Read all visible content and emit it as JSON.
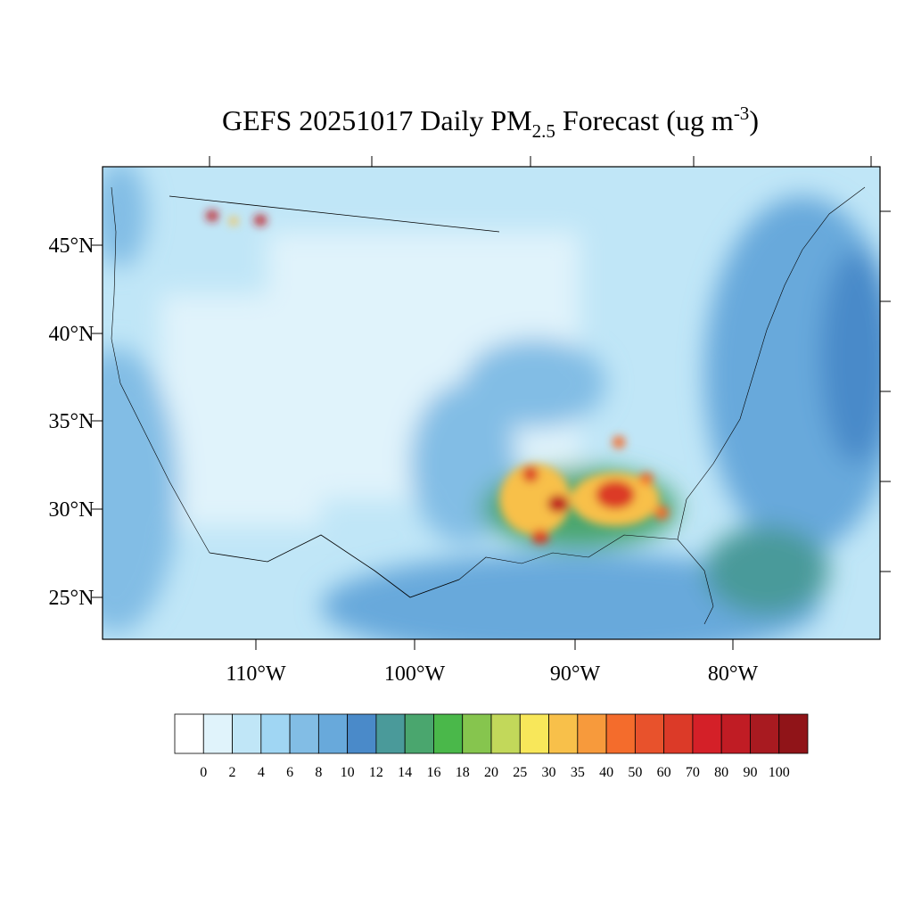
{
  "title": {
    "main": "GEFS 20251017 Daily PM",
    "sub": "2.5",
    "mid": " Forecast (ug m",
    "sup": "-3",
    "end": ")"
  },
  "lat_labels": [
    "45°N",
    "40°N",
    "35°N",
    "30°N",
    "25°N"
  ],
  "lon_labels": [
    "110°W",
    "100°W",
    "90°W",
    "80°W"
  ],
  "colorbar": {
    "levels": [
      0,
      2,
      4,
      6,
      8,
      10,
      12,
      14,
      16,
      18,
      20,
      25,
      30,
      35,
      40,
      50,
      60,
      70,
      80,
      90,
      100
    ],
    "colors": [
      "#ffffff",
      "#e0f3fb",
      "#c0e6f7",
      "#a0d6f3",
      "#82bde5",
      "#68a9db",
      "#4a8ac9",
      "#4a9a9a",
      "#4aa66e",
      "#4ab84a",
      "#86c54e",
      "#c2d85a",
      "#f8e75a",
      "#f8c04a",
      "#f79a3c",
      "#f46c2c",
      "#e8522c",
      "#dc3a28",
      "#d42028",
      "#c01c24",
      "#a81a20",
      "#901418"
    ]
  }
}
